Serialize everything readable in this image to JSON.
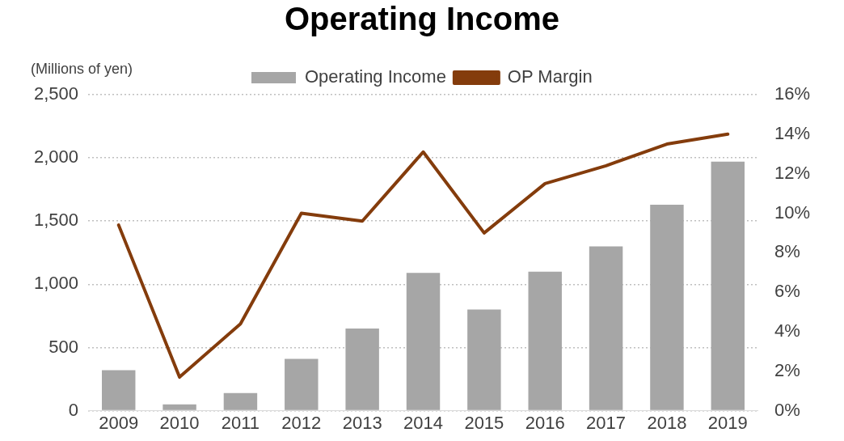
{
  "chart_data": {
    "type": "bar",
    "title": "Operating Income",
    "ylabel": "(Millions of yen)",
    "categories": [
      "2009",
      "2010",
      "2011",
      "2012",
      "2013",
      "2014",
      "2015",
      "2016",
      "2017",
      "2018",
      "2019"
    ],
    "series": [
      {
        "name": "Operating Income",
        "color": "#a6a6a6",
        "values": [
          320,
          50,
          140,
          410,
          650,
          1090,
          800,
          1100,
          1300,
          1630,
          1970
        ]
      },
      {
        "name": "OP Margin",
        "type": "line",
        "axis": "y2",
        "color": "#843c0c",
        "values": [
          9.4,
          1.7,
          4.4,
          10.0,
          9.6,
          13.1,
          9.0,
          11.5,
          12.4,
          13.5,
          14.0
        ]
      }
    ],
    "ylim": [
      0,
      2500
    ],
    "yticks": [
      0,
      500,
      {
        "value": 1000,
        "label": "1,000"
      },
      {
        "value": 1500,
        "label": "1,500"
      },
      {
        "value": 2000,
        "label": "2,000"
      },
      {
        "value": 2500,
        "label": "2,500"
      }
    ],
    "y2lim": [
      0,
      16
    ],
    "y2ticks": [
      {
        "value": 0,
        "label": "0%"
      },
      {
        "value": 2,
        "label": "2%"
      },
      {
        "value": 4,
        "label": "4%"
      },
      {
        "value": 6,
        "label": "6%"
      },
      {
        "value": 8,
        "label": "8%"
      },
      {
        "value": 10,
        "label": "10%"
      },
      {
        "value": 12,
        "label": "12%"
      },
      {
        "value": 14,
        "label": "14%"
      },
      {
        "value": 16,
        "label": "16%"
      }
    ],
    "grid": "y",
    "legend": "top",
    "marker": "none",
    "line_style": "solid"
  }
}
